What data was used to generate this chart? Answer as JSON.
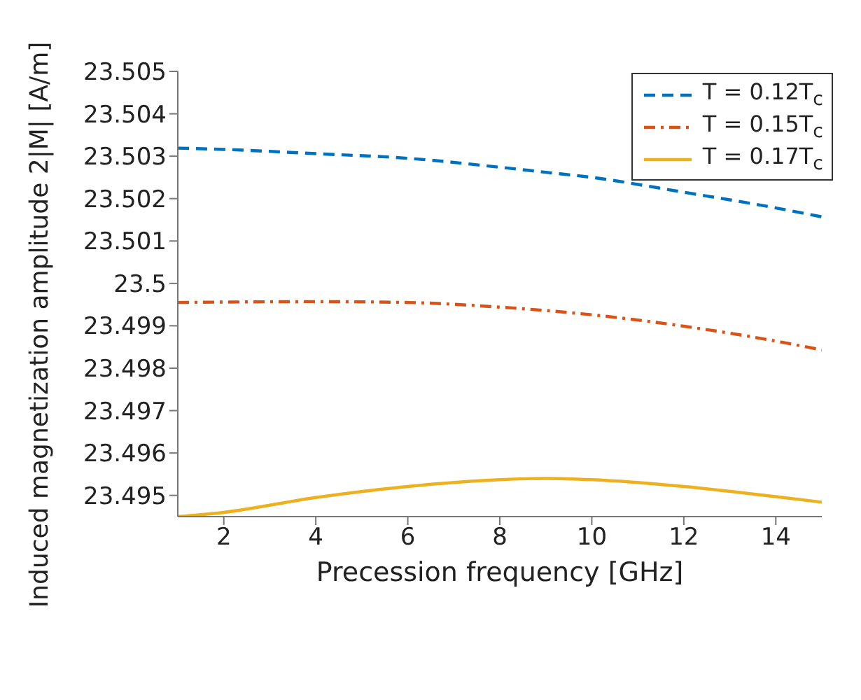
{
  "chart_data": {
    "type": "line",
    "xlabel": "Precession frequency [GHz]",
    "ylabel": "Induced magnetization amplitude  2|M| [A/m]",
    "x": [
      1,
      2,
      4,
      6,
      8,
      9,
      10,
      12,
      14,
      15
    ],
    "series": [
      {
        "name": "T = 0.12T$_{c}$",
        "color": "#0072bd",
        "line_style": "dashed",
        "values": [
          23.50319,
          23.50316,
          23.50306,
          23.50295,
          23.50274,
          23.50262,
          23.5025,
          23.50215,
          23.50178,
          23.50157
        ]
      },
      {
        "name": "T = 0.15T$_{c}$",
        "color": "#d95319",
        "line_style": "dashdot",
        "values": [
          23.49955,
          23.49956,
          23.49957,
          23.49955,
          23.49944,
          23.49936,
          23.49926,
          23.49899,
          23.49864,
          23.49843
        ]
      },
      {
        "name": "T = 0.17T$_{c}$",
        "color": "#edb120",
        "line_style": "solid",
        "values": [
          23.4945,
          23.4946,
          23.49495,
          23.49521,
          23.49537,
          23.4954,
          23.49537,
          23.49521,
          23.49497,
          23.49484
        ]
      }
    ],
    "xlim": [
      1,
      15
    ],
    "xticks": [
      2,
      4,
      6,
      8,
      10,
      12,
      14
    ],
    "ylim": [
      23.4945,
      23.505
    ],
    "yticks": [
      23.495,
      23.496,
      23.497,
      23.498,
      23.499,
      23.5,
      23.501,
      23.502,
      23.503,
      23.504,
      23.505
    ],
    "grid": false,
    "legend": "top right",
    "marker": "none"
  }
}
